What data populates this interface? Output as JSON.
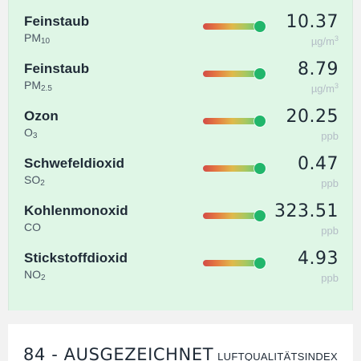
{
  "pollutants": [
    {
      "name": "Feinstaub",
      "formula_base": "PM",
      "formula_sub": "10",
      "value": "10.37",
      "unit_base": "µg/m",
      "unit_sup": "3",
      "quality_level": 1.0
    },
    {
      "name": "Feinstaub",
      "formula_base": "PM",
      "formula_sub": "2.5",
      "value": "8.79",
      "unit_base": "µg/m",
      "unit_sup": "3",
      "quality_level": 1.0
    },
    {
      "name": "Ozon",
      "formula_base": "O",
      "formula_sub": "3",
      "value": "20.25",
      "unit_base": "ppb",
      "unit_sup": "",
      "quality_level": 1.0
    },
    {
      "name": "Schwefeldioxid",
      "formula_base": "SO",
      "formula_sub": "2",
      "value": "0.47",
      "unit_base": "ppb",
      "unit_sup": "",
      "quality_level": 1.0
    },
    {
      "name": "Kohlenmonoxid",
      "formula_base": "CO",
      "formula_sub": "",
      "value": "323.51",
      "unit_base": "ppb",
      "unit_sup": "",
      "quality_level": 1.0
    },
    {
      "name": "Stickstoffdioxid",
      "formula_base": "NO",
      "formula_sub": "2",
      "value": "4.93",
      "unit_base": "ppb",
      "unit_sup": "",
      "quality_level": 1.0
    }
  ],
  "footer": {
    "aqi_text": "84 - AUSGEZEICHNET",
    "index_label": "LUFTQUALITÄTSINDEX"
  },
  "colors": {
    "panel_background": "#dff6e6",
    "page_background": "#f2f2f2",
    "marker_green": "#21b66b",
    "bar_red": "#d24b46",
    "bar_orange": "#e57942",
    "bar_yellow": "#e0b94b",
    "bar_green": "#61c67b",
    "unit_gray": "#b3bcc5"
  }
}
